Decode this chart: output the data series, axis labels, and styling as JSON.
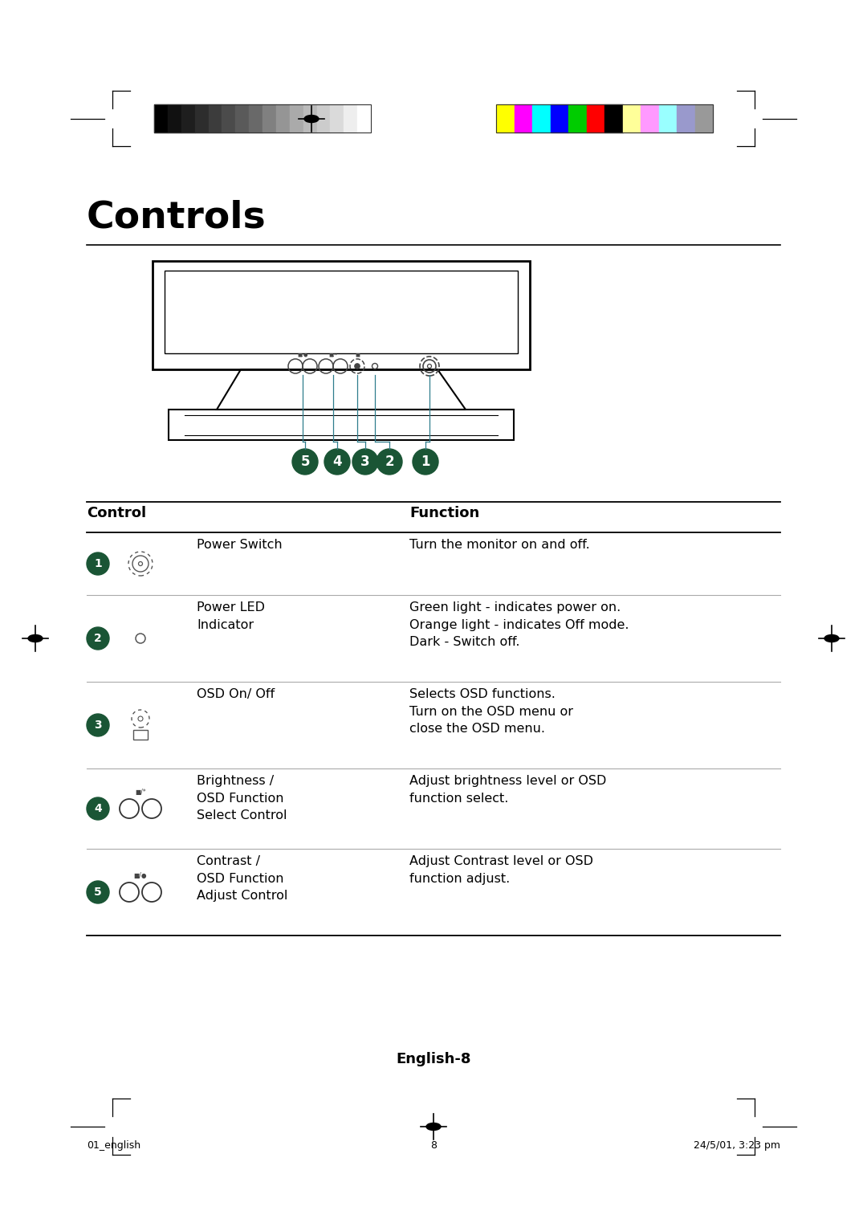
{
  "bg_color": "#ffffff",
  "title": "Controls",
  "title_fontsize": 34,
  "table_header": [
    "Control",
    "Function"
  ],
  "rows": [
    {
      "num": "1",
      "icon_type": "power_switch",
      "label": "Power Switch",
      "function": "Turn the monitor on and off."
    },
    {
      "num": "2",
      "icon_type": "led_circle",
      "label": "Power LED\nIndicator",
      "function": "Green light - indicates power on.\nOrange light - indicates Off mode.\nDark - Switch off."
    },
    {
      "num": "3",
      "icon_type": "osd_button",
      "label": "OSD On/ Off",
      "function": "Selects OSD functions.\nTurn on the OSD menu or\nclose the OSD menu."
    },
    {
      "num": "4",
      "icon_type": "dual_knob",
      "label": "Brightness /\nOSD Function\nSelect Control",
      "function": "Adjust brightness level or OSD\nfunction select.",
      "icon_label": "■/*"
    },
    {
      "num": "5",
      "icon_type": "dual_knob2",
      "label": "Contrast /\nOSD Function\nAdjust Control",
      "function": "Adjust Contrast level or OSD\nfunction adjust.",
      "icon_label": "■/●"
    }
  ],
  "footer_text": "English-8",
  "footer_left": "01_english",
  "footer_center": "8",
  "footer_right": "24/5/01, 3:23 pm",
  "color_bar_left_colors": [
    "#000000",
    "#111111",
    "#1e1e1e",
    "#2d2d2d",
    "#3c3c3c",
    "#4b4b4b",
    "#5a5a5a",
    "#696969",
    "#808080",
    "#959595",
    "#aaaaaa",
    "#bbbbbb",
    "#cccccc",
    "#dadada",
    "#eeeeee",
    "#ffffff"
  ],
  "color_bar_right_colors": [
    "#ffff00",
    "#ff00ff",
    "#00ffff",
    "#0000ff",
    "#00cc00",
    "#ff0000",
    "#000000",
    "#ffff99",
    "#ff99ff",
    "#99ffff",
    "#9999cc",
    "#999999"
  ],
  "teal_color": "#2e7d8c",
  "num_circle_color": "#1a5535"
}
